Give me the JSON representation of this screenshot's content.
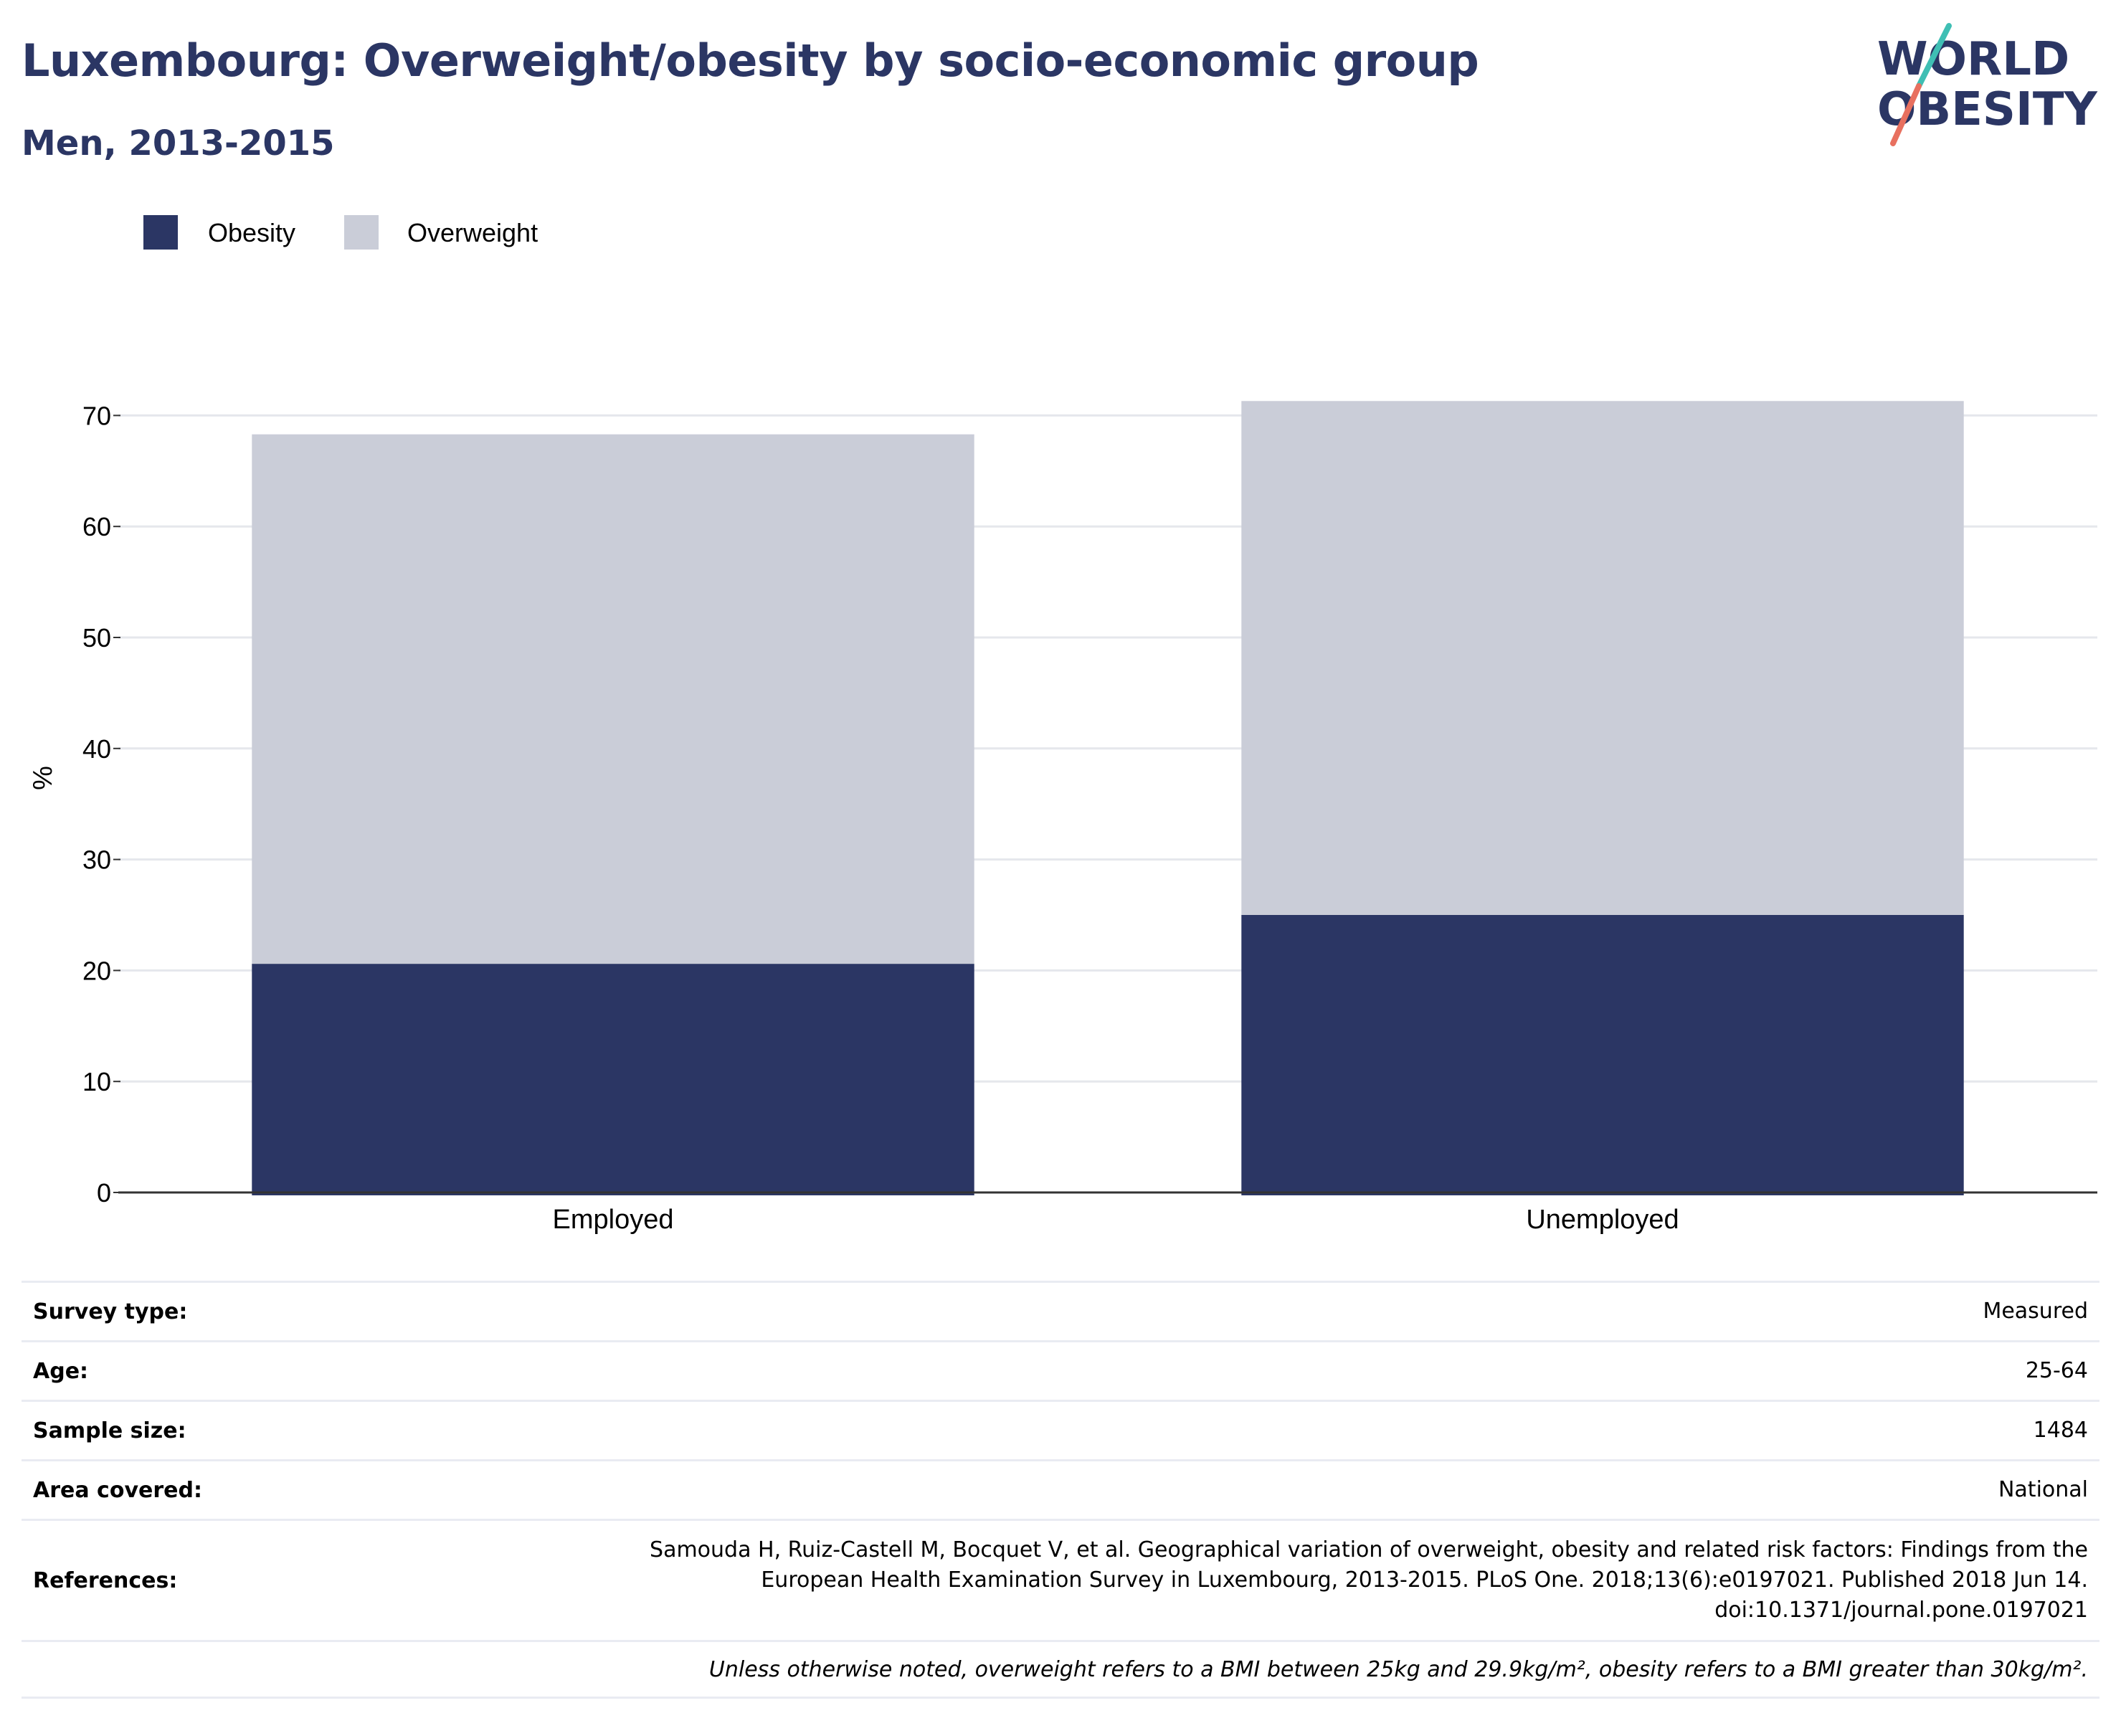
{
  "header": {
    "title": "Luxembourg: Overweight/obesity by socio-economic group",
    "subtitle": "Men, 2013-2015",
    "logo_line1": "WORLD",
    "logo_line2": "OBESITY"
  },
  "colors": {
    "title": "#2b3664",
    "obesity": "#2b3664",
    "overweight": "#cacdd8",
    "gridline": "#e5e7ec",
    "axis": "#333333",
    "logo_teal": "#3fbfb4",
    "logo_coral": "#e8705f"
  },
  "chart_data": {
    "type": "bar",
    "stacked": true,
    "categories": [
      "Employed",
      "Unemployed"
    ],
    "series": [
      {
        "name": "Obesity",
        "values": [
          20.6,
          25.0
        ]
      },
      {
        "name": "Overweight",
        "values": [
          47.7,
          46.3
        ]
      }
    ],
    "ylabel": "%",
    "ylim": [
      0,
      70
    ],
    "yticks": [
      0,
      10,
      20,
      30,
      40,
      50,
      60,
      70
    ],
    "grid": true,
    "legend_position": "top-left"
  },
  "metadata": {
    "rows": [
      {
        "label": "Survey type:",
        "value": "Measured"
      },
      {
        "label": "Age:",
        "value": "25-64"
      },
      {
        "label": "Sample size:",
        "value": "1484"
      },
      {
        "label": "Area covered:",
        "value": "National"
      }
    ],
    "references_label": "References:",
    "references_lines": [
      "Samouda H, Ruiz-Castell M, Bocquet V, et al. Geographical variation of overweight, obesity and related risk factors: Findings from the",
      "European Health Examination Survey in Luxembourg, 2013-2015. PLoS One. 2018;13(6):e0197021. Published 2018 Jun 14.",
      "doi:10.1371/journal.pone.0197021"
    ],
    "note": "Unless otherwise noted, overweight refers to a BMI between 25kg and 29.9kg/m², obesity refers to a BMI greater than 30kg/m²."
  }
}
